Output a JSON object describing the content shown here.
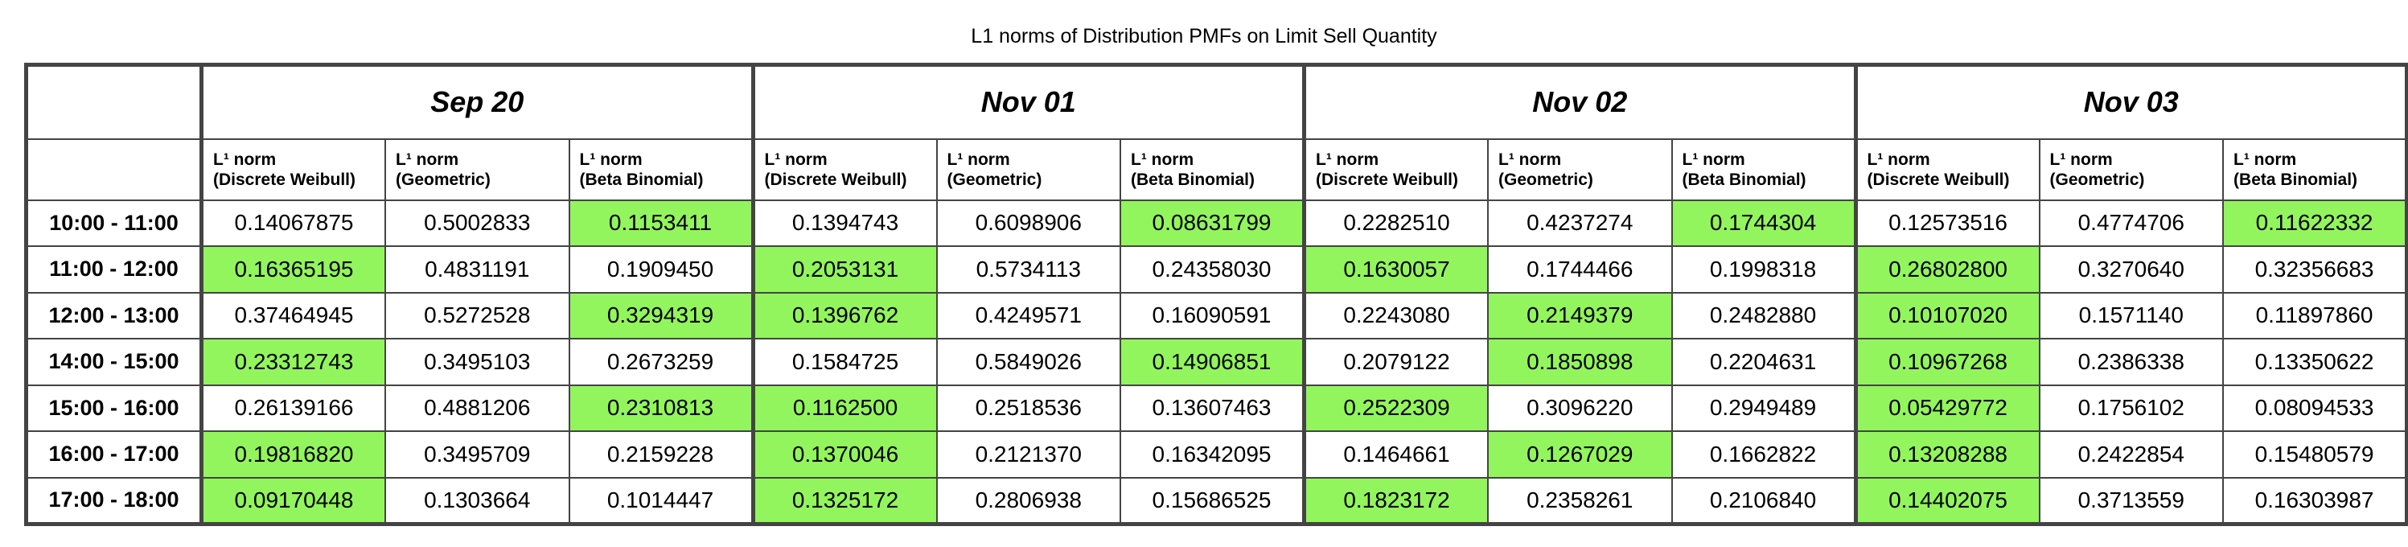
{
  "chart_data": {
    "type": "table",
    "title": "L1 norms of Distribution PMFs on Limit Sell Quantity",
    "groups": [
      "Sep 20",
      "Nov 01",
      "Nov 02",
      "Nov 03"
    ],
    "metrics": [
      {
        "line1": "L¹ norm",
        "line2": "(Discrete Weibull)"
      },
      {
        "line1": "L¹ norm",
        "line2": "(Geometric)"
      },
      {
        "line1": "L¹ norm",
        "line2": "(Beta Binomial)"
      }
    ],
    "highlight_color": "#92f55d",
    "rows": [
      {
        "label": "10:00 - 11:00",
        "values": [
          "0.14067875",
          "0.5002833",
          "0.1153411",
          "0.1394743",
          "0.6098906",
          "0.08631799",
          "0.2282510",
          "0.4237274",
          "0.1744304",
          "0.12573516",
          "0.4774706",
          "0.11622332"
        ],
        "highlight": [
          2,
          5,
          8,
          11
        ]
      },
      {
        "label": "11:00 - 12:00",
        "values": [
          "0.16365195",
          "0.4831191",
          "0.1909450",
          "0.2053131",
          "0.5734113",
          "0.24358030",
          "0.1630057",
          "0.1744466",
          "0.1998318",
          "0.26802800",
          "0.3270640",
          "0.32356683"
        ],
        "highlight": [
          0,
          3,
          6,
          9
        ]
      },
      {
        "label": "12:00 - 13:00",
        "values": [
          "0.37464945",
          "0.5272528",
          "0.3294319",
          "0.1396762",
          "0.4249571",
          "0.16090591",
          "0.2243080",
          "0.2149379",
          "0.2482880",
          "0.10107020",
          "0.1571140",
          "0.11897860"
        ],
        "highlight": [
          2,
          3,
          7,
          9
        ]
      },
      {
        "label": "14:00 - 15:00",
        "values": [
          "0.23312743",
          "0.3495103",
          "0.2673259",
          "0.1584725",
          "0.5849026",
          "0.14906851",
          "0.2079122",
          "0.1850898",
          "0.2204631",
          "0.10967268",
          "0.2386338",
          "0.13350622"
        ],
        "highlight": [
          0,
          5,
          7,
          9
        ]
      },
      {
        "label": "15:00 - 16:00",
        "values": [
          "0.26139166",
          "0.4881206",
          "0.2310813",
          "0.1162500",
          "0.2518536",
          "0.13607463",
          "0.2522309",
          "0.3096220",
          "0.2949489",
          "0.05429772",
          "0.1756102",
          "0.08094533"
        ],
        "highlight": [
          2,
          3,
          6,
          9
        ]
      },
      {
        "label": "16:00 - 17:00",
        "values": [
          "0.19816820",
          "0.3495709",
          "0.2159228",
          "0.1370046",
          "0.2121370",
          "0.16342095",
          "0.1464661",
          "0.1267029",
          "0.1662822",
          "0.13208288",
          "0.2422854",
          "0.15480579"
        ],
        "highlight": [
          0,
          3,
          7,
          9
        ]
      },
      {
        "label": "17:00 - 18:00",
        "values": [
          "0.09170448",
          "0.1303664",
          "0.1014447",
          "0.1325172",
          "0.2806938",
          "0.15686525",
          "0.1823172",
          "0.2358261",
          "0.2106840",
          "0.14402075",
          "0.3713559",
          "0.16303987"
        ],
        "highlight": [
          0,
          3,
          6,
          9
        ]
      }
    ]
  }
}
